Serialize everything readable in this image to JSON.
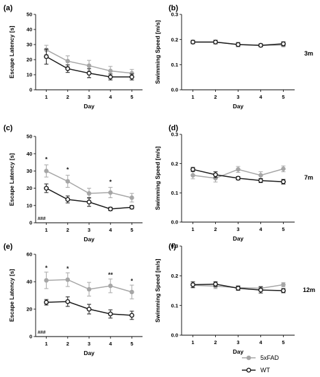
{
  "colors": {
    "fad": "#a6a6a6",
    "wt": "#1a1a1a"
  },
  "legend": [
    {
      "name": "5xFAD",
      "color": "#a6a6a6",
      "marker": "filled-circle"
    },
    {
      "name": "WT",
      "color": "#1a1a1a",
      "marker": "open-circle"
    }
  ],
  "chart_data": [
    {
      "panel": "(a)",
      "type": "line",
      "xlabel": "Day",
      "ylabel": "Escape Latency [s]",
      "x": [
        1,
        2,
        3,
        4,
        5
      ],
      "ylim": [
        0,
        50
      ],
      "yticks": [
        0,
        10,
        20,
        30,
        40,
        50
      ],
      "series": [
        {
          "name": "5xFAD",
          "values": [
            26.5,
            19,
            16,
            12.5,
            11
          ],
          "errors": [
            3,
            3.5,
            3.5,
            3,
            2.5
          ]
        },
        {
          "name": "WT",
          "values": [
            22,
            14,
            11,
            8.5,
            8.5
          ],
          "errors": [
            5,
            2.5,
            3,
            2,
            2
          ]
        }
      ],
      "annotations": []
    },
    {
      "panel": "(b)",
      "type": "line",
      "xlabel": "Day",
      "ylabel": "Swimming Speed [m/s]",
      "side_label": "3m",
      "x": [
        1,
        2,
        3,
        4,
        5
      ],
      "ylim": [
        0,
        0.3
      ],
      "yticks": [
        0.0,
        0.1,
        0.2,
        0.3
      ],
      "series": [
        {
          "name": "5xFAD",
          "values": [
            0.19,
            0.19,
            0.18,
            0.177,
            0.178
          ],
          "errors": [
            0.008,
            0.008,
            0.008,
            0.006,
            0.007
          ]
        },
        {
          "name": "WT",
          "values": [
            0.19,
            0.19,
            0.18,
            0.177,
            0.183
          ],
          "errors": [
            0.006,
            0.007,
            0.008,
            0.006,
            0.008
          ]
        }
      ],
      "annotations": []
    },
    {
      "panel": "(c)",
      "type": "line",
      "xlabel": "Day",
      "ylabel": "Escape Latency [s]",
      "x": [
        1,
        2,
        3,
        4,
        5
      ],
      "ylim": [
        0,
        50
      ],
      "yticks": [
        0,
        10,
        20,
        30,
        40,
        50
      ],
      "series": [
        {
          "name": "5xFAD",
          "values": [
            30,
            24,
            17,
            17.5,
            14.5
          ],
          "errors": [
            3.5,
            3.5,
            3,
            3,
            2.5
          ]
        },
        {
          "name": "WT",
          "values": [
            20,
            13.5,
            12,
            8,
            9
          ],
          "errors": [
            2.5,
            2,
            2.5,
            1,
            1
          ]
        }
      ],
      "annotations": [
        {
          "text": "*",
          "x": 1,
          "y": 35.5
        },
        {
          "text": "*",
          "x": 2,
          "y": 29.5
        },
        {
          "text": "*",
          "x": 4,
          "y": 22.5
        },
        {
          "text": "###",
          "x": 1,
          "y": 1.5
        }
      ]
    },
    {
      "panel": "(d)",
      "type": "line",
      "xlabel": "Day",
      "ylabel": "Swimming Speed [m/s]",
      "side_label": "7m",
      "x": [
        1,
        2,
        3,
        4,
        5
      ],
      "ylim": [
        0,
        0.3
      ],
      "yticks": [
        0.0,
        0.1,
        0.2,
        0.3
      ],
      "series": [
        {
          "name": "5xFAD",
          "values": [
            0.16,
            0.15,
            0.18,
            0.16,
            0.182
          ],
          "errors": [
            0.012,
            0.013,
            0.01,
            0.012,
            0.01
          ]
        },
        {
          "name": "WT",
          "values": [
            0.18,
            0.162,
            0.15,
            0.142,
            0.138
          ],
          "errors": [
            0.007,
            0.01,
            0.006,
            0.007,
            0.008
          ]
        }
      ],
      "annotations": []
    },
    {
      "panel": "(e)",
      "type": "line",
      "xlabel": "Day",
      "ylabel": "Escape Latency [s]",
      "x": [
        1,
        2,
        3,
        4,
        5
      ],
      "ylim": [
        0,
        60
      ],
      "yticks": [
        0,
        20,
        40,
        60
      ],
      "series": [
        {
          "name": "5xFAD",
          "values": [
            41,
            41.5,
            34.5,
            37,
            32.5
          ],
          "errors": [
            6,
            5,
            5,
            5,
            5
          ]
        },
        {
          "name": "WT",
          "values": [
            25,
            25.5,
            20,
            16.5,
            15.5
          ],
          "errors": [
            2,
            3.5,
            3.5,
            3,
            3
          ]
        }
      ],
      "annotations": [
        {
          "text": "*",
          "x": 1,
          "y": 48.5
        },
        {
          "text": "*",
          "x": 2,
          "y": 48
        },
        {
          "text": "**",
          "x": 4,
          "y": 43.5
        },
        {
          "text": "*",
          "x": 5,
          "y": 39
        },
        {
          "text": "###",
          "x": 1,
          "y": 2
        }
      ]
    },
    {
      "panel": "(f)",
      "type": "line",
      "xlabel": "Day",
      "ylabel": "Swimming Speed [m/s]",
      "side_label": "12m",
      "x": [
        1,
        2,
        3,
        4,
        5
      ],
      "ylim": [
        0,
        0.3
      ],
      "yticks": [
        0.0,
        0.1,
        0.2,
        0.3
      ],
      "series": [
        {
          "name": "5xFAD",
          "values": [
            0.168,
            0.165,
            0.16,
            0.158,
            0.17
          ],
          "errors": [
            0.008,
            0.008,
            0.007,
            0.007,
            0.007
          ]
        },
        {
          "name": "WT",
          "values": [
            0.17,
            0.172,
            0.158,
            0.152,
            0.15
          ],
          "errors": [
            0.01,
            0.008,
            0.007,
            0.01,
            0.007
          ]
        }
      ],
      "annotations": []
    }
  ]
}
